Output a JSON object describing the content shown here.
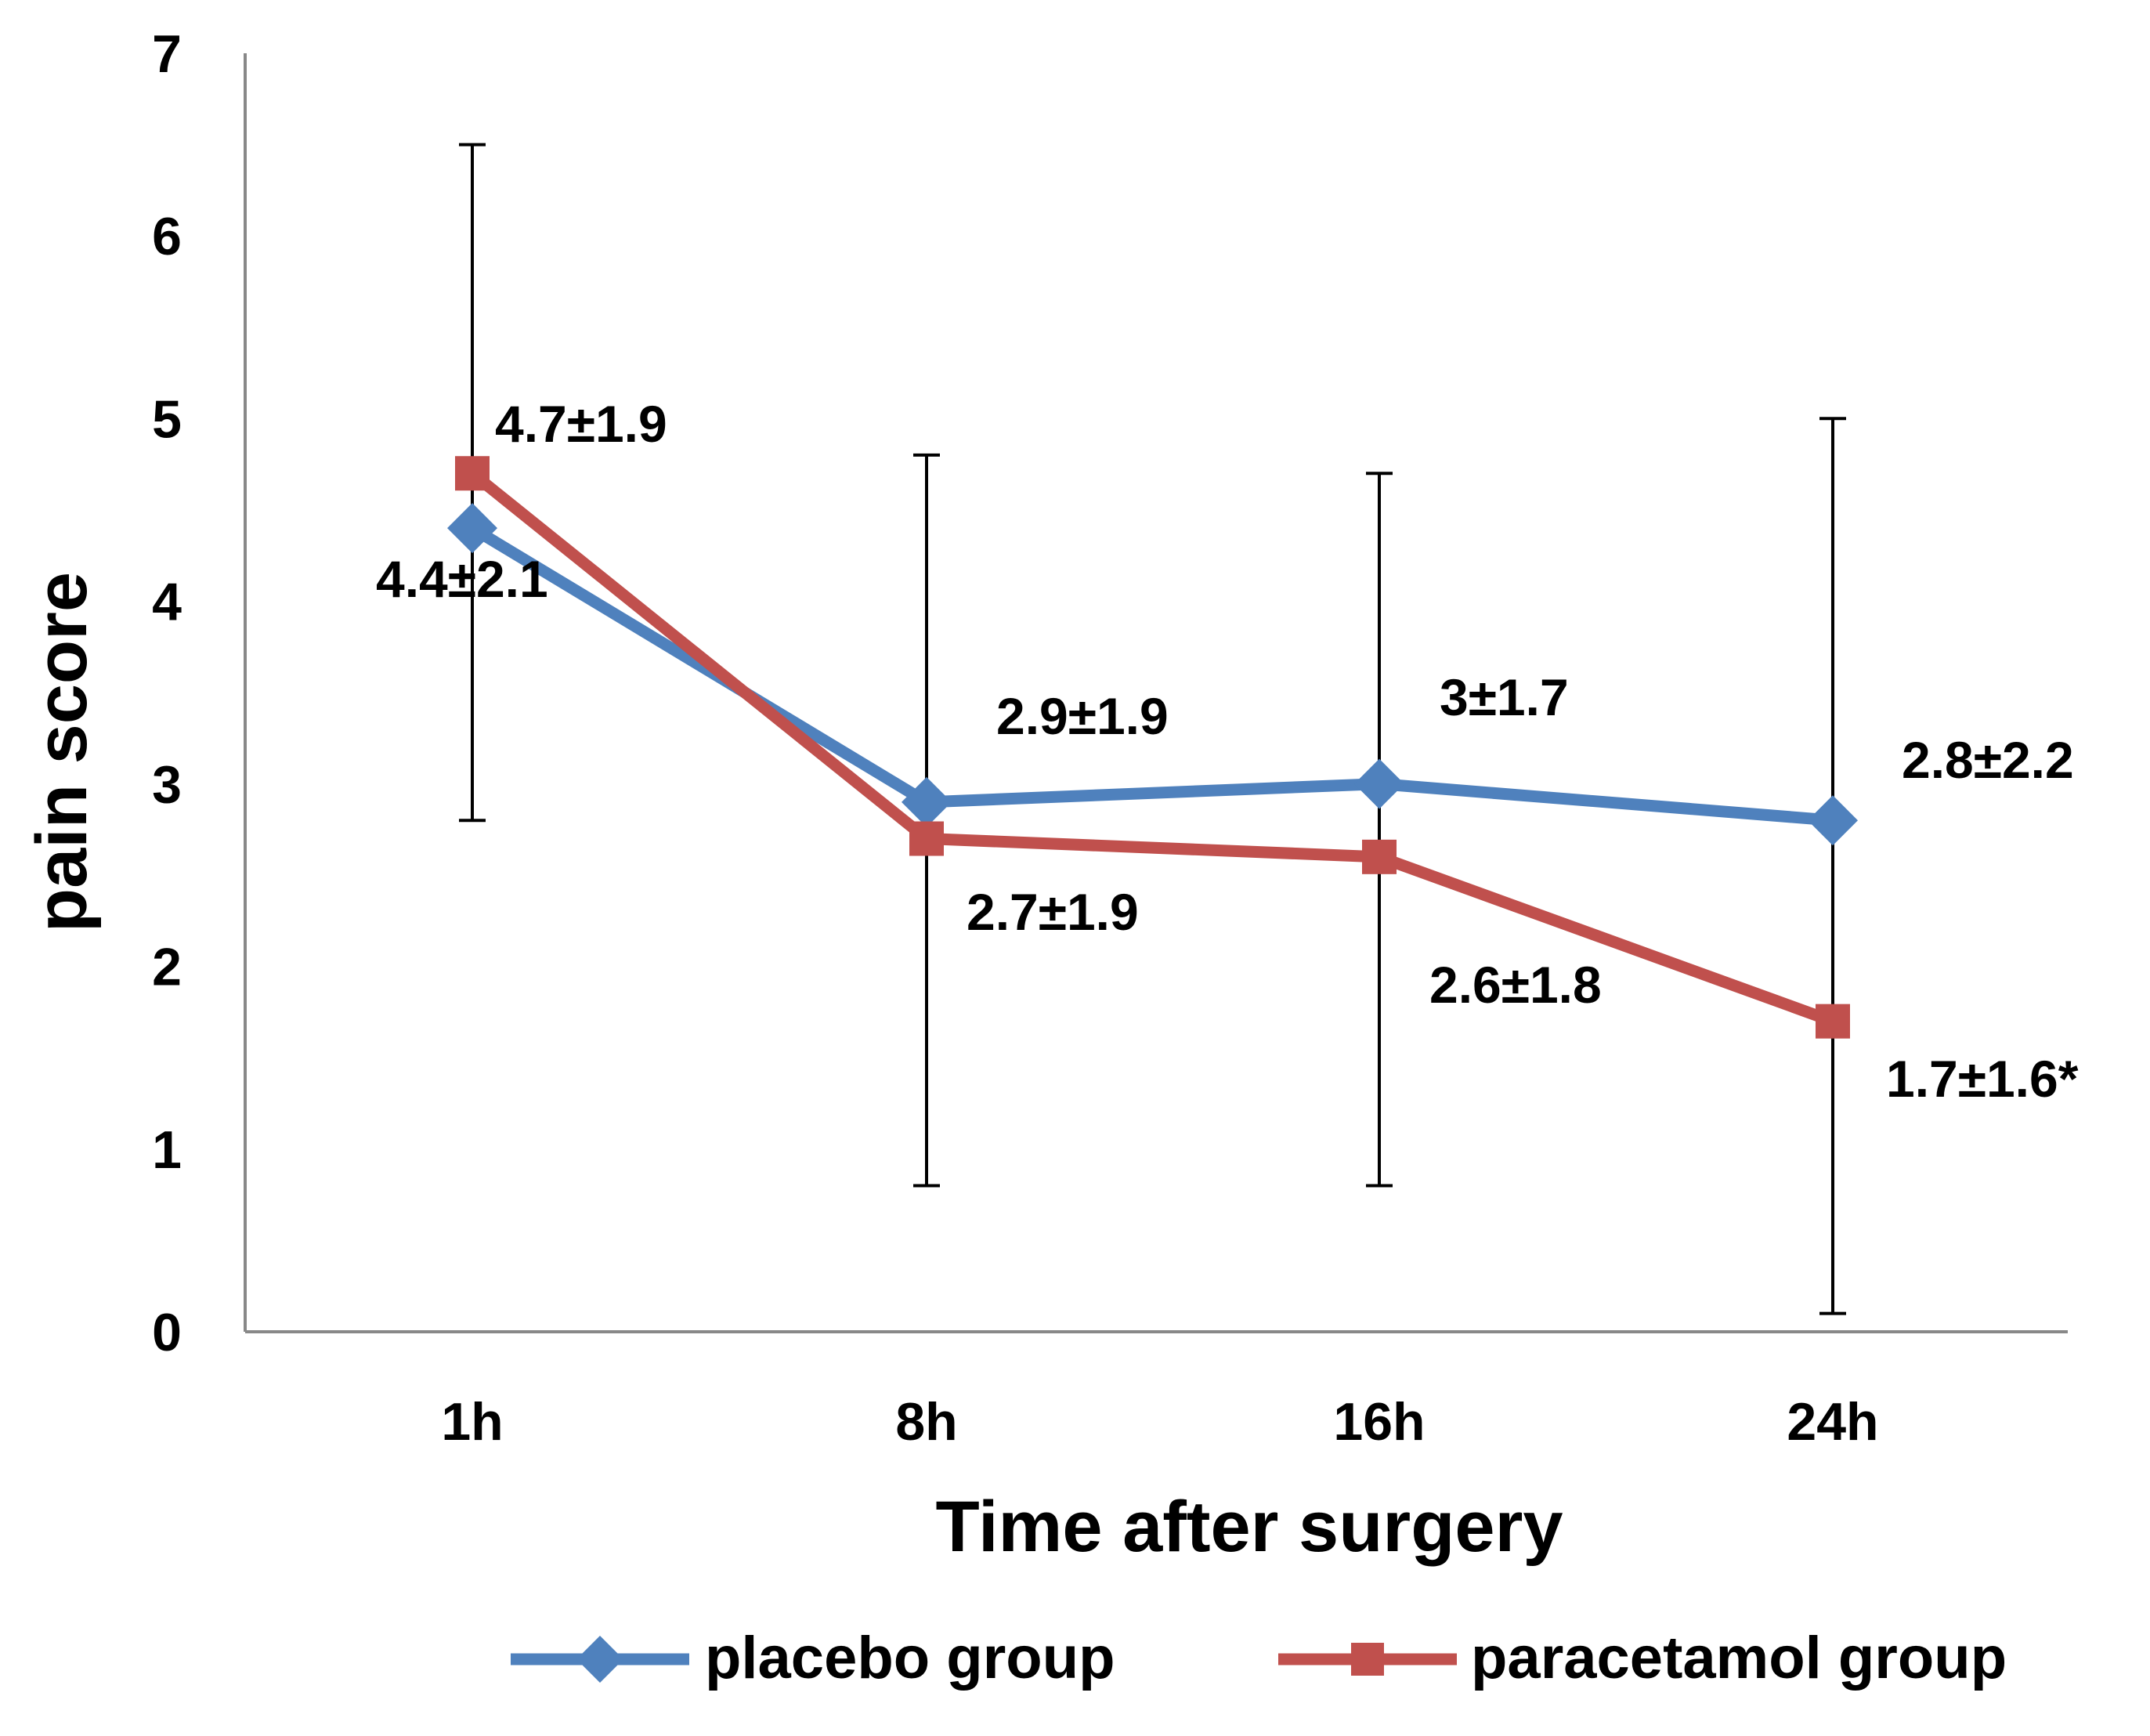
{
  "chart_data": {
    "type": "line",
    "title": "",
    "xlabel": "Time after surgery",
    "ylabel": "pain score",
    "categories": [
      "1h",
      "8h",
      "16h",
      "24h"
    ],
    "ylim": [
      0,
      7
    ],
    "yticks": [
      "0",
      "1",
      "2",
      "3",
      "4",
      "5",
      "6",
      "7"
    ],
    "grid": false,
    "legend_position": "bottom",
    "series": [
      {
        "name": "placebo group",
        "color": "#4F81BD",
        "marker": "diamond",
        "values": [
          4.4,
          2.9,
          3.0,
          2.8
        ],
        "sd": [
          2.1,
          1.9,
          1.7,
          2.2
        ],
        "labels": [
          "4.4±2.1",
          "2.9±1.9",
          "3±1.7",
          "2.8±2.2"
        ]
      },
      {
        "name": "paracetamol group",
        "color": "#C0504D",
        "marker": "square",
        "values": [
          4.7,
          2.7,
          2.6,
          1.7
        ],
        "sd": [
          1.9,
          1.9,
          1.8,
          1.6
        ],
        "labels": [
          "4.7±1.9",
          "2.7±1.9",
          "2.6±1.8",
          "1.7±1.6*"
        ]
      }
    ],
    "error_bars": [
      {
        "category": "1h",
        "low": 2.8,
        "high": 6.5
      },
      {
        "category": "8h",
        "low": 0.8,
        "high": 4.8
      },
      {
        "category": "16h",
        "low": 0.8,
        "high": 4.7
      },
      {
        "category": "24h",
        "low": 0.1,
        "high": 5.0
      }
    ]
  }
}
